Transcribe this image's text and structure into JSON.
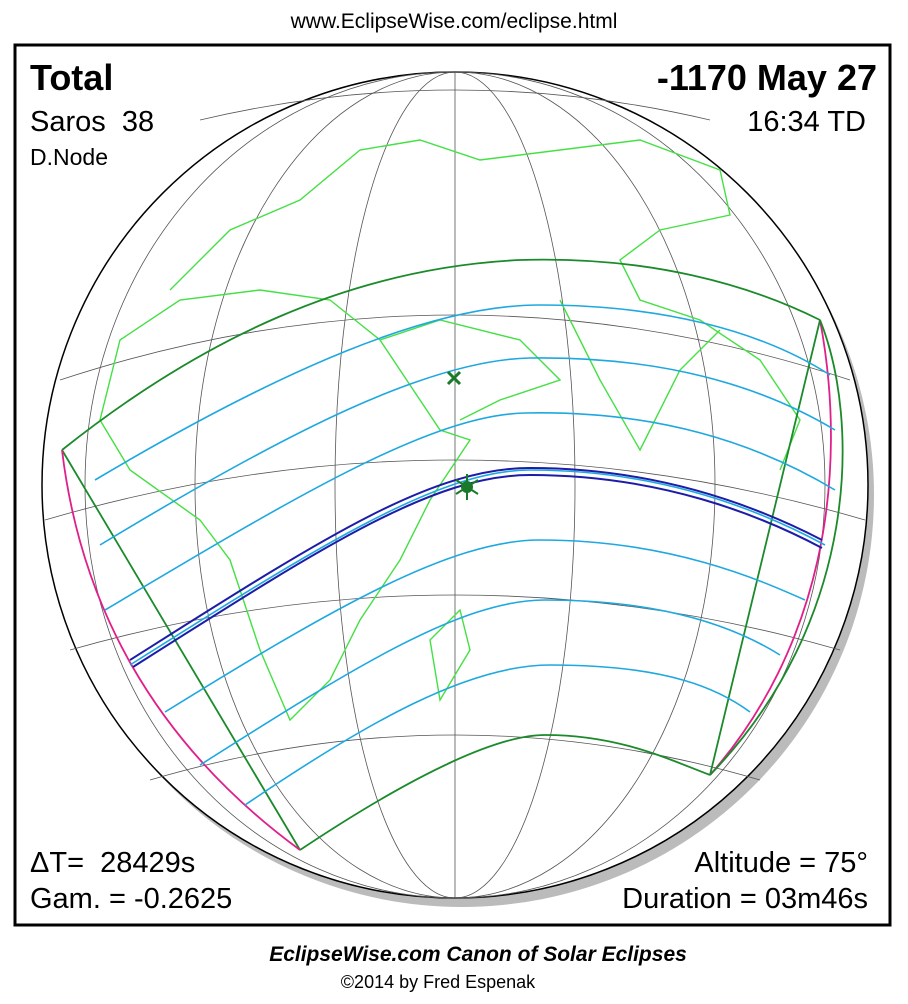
{
  "header": {
    "url": "www.EclipseWise.com/eclipse.html"
  },
  "panel": {
    "type": "Total",
    "date": "-1170 May 27",
    "saros": "Saros  38",
    "time": "16:34 TD",
    "node": "D.Node",
    "delta_t": "ΔT=  28429s",
    "gamma": "Gam. = -0.2625",
    "altitude": "Altitude = 75°",
    "duration": "Duration = 03m46s"
  },
  "footer": {
    "title": "EclipseWise.com Canon of Solar Eclipses",
    "copyright": "©2014 by Fred Espenak"
  }
}
